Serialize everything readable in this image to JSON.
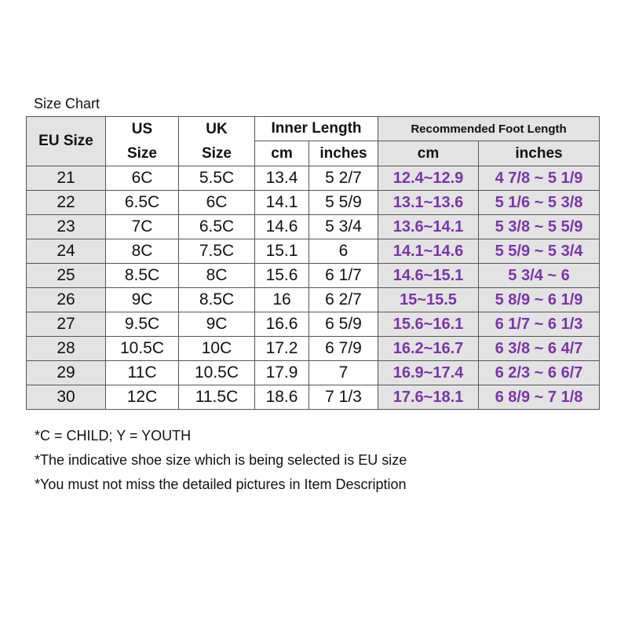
{
  "title": "Size Chart",
  "headers": {
    "eu": "EU Size",
    "us_line1": "US",
    "us_line2": "Size",
    "uk_line1": "UK",
    "uk_line2": "Size",
    "inner_length": "Inner Length",
    "recommended": "Recommended Foot Length",
    "inner_cm": "cm",
    "inner_inches": "inches",
    "rec_cm": "cm",
    "rec_inches": "inches"
  },
  "rows": [
    {
      "eu": "21",
      "us": "6C",
      "uk": "5.5C",
      "inner_cm": "13.4",
      "inner_in": "5 2/7",
      "rec_cm": "12.4~12.9",
      "rec_in": "4 7/8 ~ 5 1/9"
    },
    {
      "eu": "22",
      "us": "6.5C",
      "uk": "6C",
      "inner_cm": "14.1",
      "inner_in": "5 5/9",
      "rec_cm": "13.1~13.6",
      "rec_in": "5 1/6 ~ 5 3/8"
    },
    {
      "eu": "23",
      "us": "7C",
      "uk": "6.5C",
      "inner_cm": "14.6",
      "inner_in": "5 3/4",
      "rec_cm": "13.6~14.1",
      "rec_in": "5 3/8 ~ 5 5/9"
    },
    {
      "eu": "24",
      "us": "8C",
      "uk": "7.5C",
      "inner_cm": "15.1",
      "inner_in": "6",
      "rec_cm": "14.1~14.6",
      "rec_in": "5 5/9 ~ 5 3/4"
    },
    {
      "eu": "25",
      "us": "8.5C",
      "uk": "8C",
      "inner_cm": "15.6",
      "inner_in": "6 1/7",
      "rec_cm": "14.6~15.1",
      "rec_in": "5 3/4 ~ 6"
    },
    {
      "eu": "26",
      "us": "9C",
      "uk": "8.5C",
      "inner_cm": "16",
      "inner_in": "6 2/7",
      "rec_cm": "15~15.5",
      "rec_in": "5 8/9 ~ 6 1/9"
    },
    {
      "eu": "27",
      "us": "9.5C",
      "uk": "9C",
      "inner_cm": "16.6",
      "inner_in": "6 5/9",
      "rec_cm": "15.6~16.1",
      "rec_in": "6 1/7 ~ 6 1/3"
    },
    {
      "eu": "28",
      "us": "10.5C",
      "uk": "10C",
      "inner_cm": "17.2",
      "inner_in": "6 7/9",
      "rec_cm": "16.2~16.7",
      "rec_in": "6 3/8 ~ 6 4/7"
    },
    {
      "eu": "29",
      "us": "11C",
      "uk": "10.5C",
      "inner_cm": "17.9",
      "inner_in": "7",
      "rec_cm": "16.9~17.4",
      "rec_in": "6 2/3 ~ 6 6/7"
    },
    {
      "eu": "30",
      "us": "12C",
      "uk": "11.5C",
      "inner_cm": "18.6",
      "inner_in": "7 1/3",
      "rec_cm": "17.6~18.1",
      "rec_in": "6 8/9 ~ 7 1/8"
    }
  ],
  "notes": [
    "*C = CHILD; Y = YOUTH",
    "*The indicative shoe size which is being selected is EU size",
    "*You must not miss the detailed pictures in Item Description"
  ],
  "colors": {
    "shaded": "#e3e3e3",
    "recommended_text": "#7a35a6",
    "border": "#555555"
  }
}
